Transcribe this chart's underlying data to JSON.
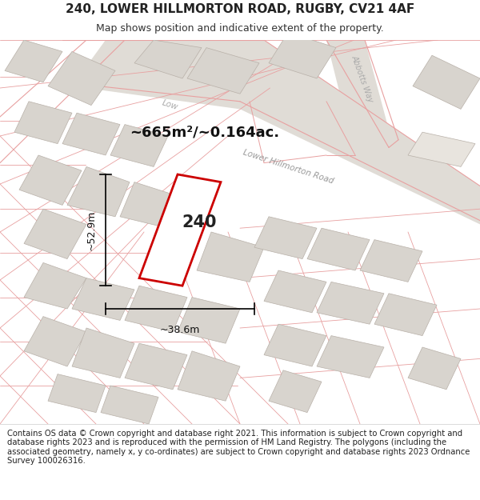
{
  "title": "240, LOWER HILLMORTON ROAD, RUGBY, CV21 4AF",
  "subtitle": "Map shows position and indicative extent of the property.",
  "footer": "Contains OS data © Crown copyright and database right 2021. This information is subject to Crown copyright and database rights 2023 and is reproduced with the permission of HM Land Registry. The polygons (including the associated geometry, namely x, y co-ordinates) are subject to Crown copyright and database rights 2023 Ordnance Survey 100026316.",
  "map_bg": "#ffffff",
  "road_fill": "#e8e0d8",
  "road_line_color": "#e8a0a0",
  "road_line_lw": 0.8,
  "plot_color": "#cc0000",
  "plot_fill": "#ffffff",
  "building_fc": "#d8d4ce",
  "building_ec": "#b8b0a8",
  "area_label": "~665m²/~0.164ac.",
  "number_label": "240",
  "width_label": "~38.6m",
  "height_label": "~52.9m",
  "road_label_lhr": "Lower Hillmorton Road",
  "road_label_lhr_short": "Low",
  "road_label_aw": "Abbotts Way",
  "title_fontsize": 11,
  "subtitle_fontsize": 9,
  "footer_fontsize": 7.2
}
